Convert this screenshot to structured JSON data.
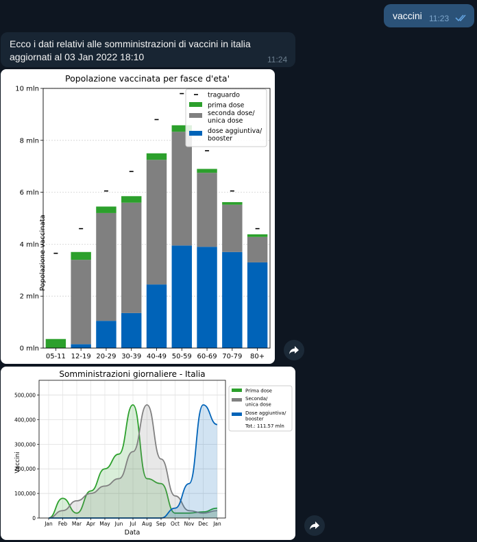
{
  "outgoing": {
    "text": "vaccini",
    "time": "11:23"
  },
  "incoming": {
    "text": "Ecco i dati relativi alle somministrazioni di vaccini in italia aggiornati al 03 Jan 2022 18:10",
    "time": "11:24"
  },
  "icons": {
    "read_receipt": "double-check-icon",
    "forward": "forward-arrow-icon"
  },
  "colors": {
    "prima": "#2ca02c",
    "seconda": "#808080",
    "booster": "#0063b8"
  },
  "chart_data": [
    {
      "type": "bar",
      "title": "Popolazione vaccinata per fasce d'eta'",
      "xlabel": "",
      "ylabel": "Popolazione vaccinata",
      "ylim": [
        0,
        10
      ],
      "yticks": [
        "0 mln",
        "2 mln",
        "4 mln",
        "6 mln",
        "8 mln",
        "10 mln"
      ],
      "categories": [
        "05-11",
        "12-19",
        "20-29",
        "30-39",
        "40-49",
        "50-59",
        "60-69",
        "70-79",
        "80+"
      ],
      "stacked": true,
      "series": [
        {
          "name": "dose aggiuntiva/ booster",
          "values": [
            0.0,
            0.15,
            1.05,
            1.35,
            2.45,
            3.95,
            3.9,
            3.7,
            3.3
          ]
        },
        {
          "name": "seconda dose/ unica dose",
          "values": [
            0.0,
            3.25,
            4.15,
            4.25,
            4.8,
            4.38,
            2.85,
            1.82,
            0.98
          ]
        },
        {
          "name": "prima dose",
          "values": [
            0.35,
            0.3,
            0.25,
            0.25,
            0.25,
            0.25,
            0.15,
            0.1,
            0.1
          ]
        }
      ],
      "traguardo": {
        "name": "traguardo",
        "values": [
          3.65,
          4.6,
          6.05,
          6.8,
          8.8,
          9.8,
          7.6,
          6.05,
          4.6
        ]
      },
      "legend": "top-right",
      "grid": true
    },
    {
      "type": "line",
      "title": "Somministrazioni giornaliere - Italia",
      "xlabel": "Data",
      "ylabel": "Vaccini",
      "ylim": [
        0,
        560000
      ],
      "yticks": [
        "0",
        "100,000",
        "200,000",
        "300,000",
        "400,000",
        "500,000"
      ],
      "x": [
        "Jan",
        "Feb",
        "Mar",
        "Apr",
        "May",
        "Jun",
        "Jul",
        "Aug",
        "Sep",
        "Oct",
        "Nov",
        "Dec",
        "Jan"
      ],
      "series": [
        {
          "name": "Prima dose",
          "values": [
            0,
            80000,
            20000,
            110000,
            200000,
            260000,
            460000,
            160000,
            140000,
            20000,
            20000,
            25000,
            40000
          ]
        },
        {
          "name": "Seconda/ unica dose",
          "values": [
            0,
            30000,
            70000,
            100000,
            130000,
            160000,
            270000,
            460000,
            240000,
            90000,
            30000,
            20000,
            30000
          ]
        },
        {
          "name": "Dose aggiuntiva/ booster",
          "values": [
            0,
            0,
            0,
            0,
            0,
            0,
            0,
            0,
            0,
            40000,
            140000,
            460000,
            380000
          ]
        }
      ],
      "legend_note": "Tot.: 111.57 mln",
      "legend": "right",
      "grid": true
    }
  ]
}
